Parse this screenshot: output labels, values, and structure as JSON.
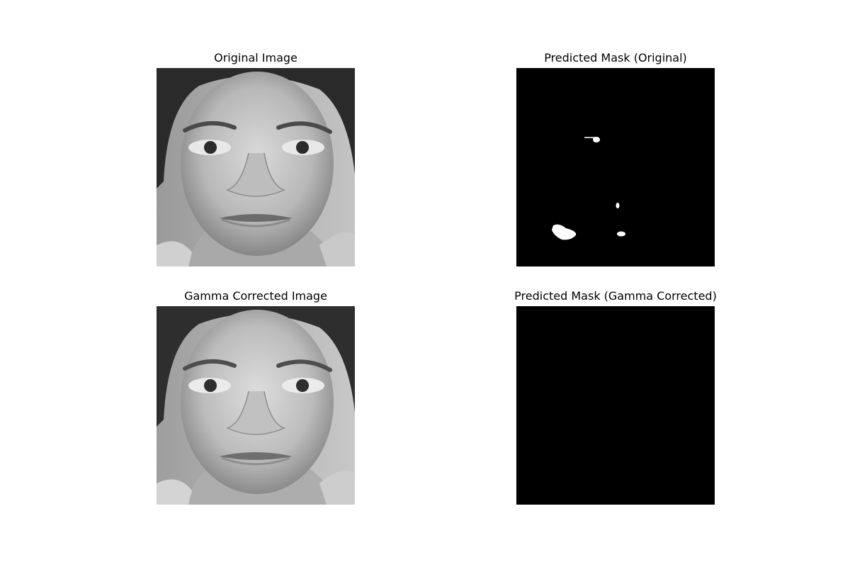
{
  "figure": {
    "panels": [
      {
        "title": "Original Image",
        "content": "grayscale face photograph"
      },
      {
        "title": "Predicted Mask (Original)",
        "content": "binary mask with small white blobs on black"
      },
      {
        "title": "Gamma Corrected Image",
        "content": "grayscale face photograph, gamma corrected"
      },
      {
        "title": "Predicted Mask (Gamma Corrected)",
        "content": "all-black binary mask"
      }
    ]
  }
}
